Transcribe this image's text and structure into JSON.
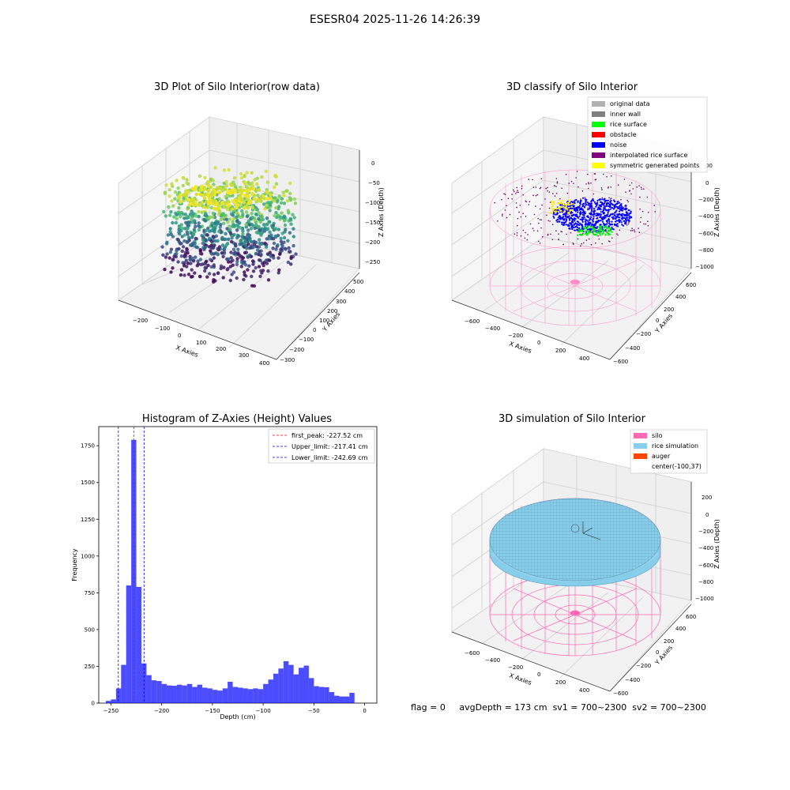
{
  "figure": {
    "suptitle": "ESESR04 2025-11-26 14:26:39",
    "status": {
      "flag": "flag = 0",
      "avg_depth": "avgDepth = 173 cm",
      "sv1": "sv1 = 700~2300",
      "sv2": "sv2 = 700~2300"
    }
  },
  "panels": {
    "raw": {
      "title": "3D Plot of Silo Interior(row data)",
      "xlabel": "X Axies",
      "ylabel": "Y Axies",
      "zlabel": "Z Axies (Depth)",
      "xticks": [
        "−200",
        "−100",
        "0",
        "100",
        "200",
        "300",
        "400"
      ],
      "yticks": [
        "−300",
        "−200",
        "−100",
        "0",
        "100",
        "200",
        "300",
        "400",
        "500"
      ],
      "zticks": [
        "0",
        "−50",
        "−100",
        "−150",
        "−200",
        "−250"
      ]
    },
    "classify": {
      "title": "3D classify of Silo Interior",
      "xlabel": "X Axies",
      "ylabel": "Y Axies",
      "zlabel": "Z Axies (Depth)",
      "xticks": [
        "−600",
        "−400",
        "−200",
        "0",
        "200",
        "400"
      ],
      "yticks": [
        "−600",
        "−400",
        "−200",
        "0",
        "200",
        "400",
        "600"
      ],
      "zticks": [
        "0",
        "−200",
        "−400",
        "−600",
        "−800",
        "−1000"
      ],
      "ztick_partial": "00",
      "legend": [
        {
          "label": "original data",
          "color": "#b0b0b0"
        },
        {
          "label": "inner wall",
          "color": "#808080"
        },
        {
          "label": "rice surface",
          "color": "#00ff00"
        },
        {
          "label": "obstacle",
          "color": "#ff0000"
        },
        {
          "label": "noise",
          "color": "#0000ff"
        },
        {
          "label": "interpolated rice surface",
          "color": "#800080"
        },
        {
          "label": "symmetric generated points",
          "color": "#ffff00"
        }
      ]
    },
    "simulation": {
      "title": "3D simulation of Silo Interior",
      "xlabel": "X Axies",
      "ylabel": "Y Axies",
      "zlabel": "Z Axies (Depth)",
      "xticks": [
        "−600",
        "−400",
        "−200",
        "0",
        "200",
        "400"
      ],
      "yticks": [
        "−600",
        "−400",
        "−200",
        "0",
        "200",
        "400",
        "600"
      ],
      "zticks": [
        "200",
        "0",
        "−200",
        "−400",
        "−600",
        "−800",
        "−1000"
      ],
      "legend": [
        {
          "label": "silo",
          "color": "#ff69b4"
        },
        {
          "label": "rice simulation",
          "color": "#87ceeb"
        },
        {
          "label": "auger",
          "color": "#ff4500"
        },
        {
          "label": "center(-100,37)",
          "color": "none"
        }
      ]
    }
  },
  "chart_data": {
    "type": "bar",
    "title": "Histogram of Z-Axies (Height) Values",
    "xlabel": "Depth (cm)",
    "ylabel": "Frequency",
    "xlim": [
      -262,
      12
    ],
    "ylim": [
      0,
      1880
    ],
    "xticks": [
      -250,
      -200,
      -150,
      -100,
      -50,
      0
    ],
    "xtick_labels": [
      "−250",
      "−200",
      "−150",
      "−100",
      "−50",
      "0"
    ],
    "yticks": [
      0,
      250,
      500,
      750,
      1000,
      1250,
      1500,
      1750
    ],
    "bar_color": "#0000ff",
    "bin_width": 5,
    "bin_starts": [
      -255,
      -250,
      -245,
      -240,
      -235,
      -230,
      -225,
      -220,
      -215,
      -210,
      -205,
      -200,
      -195,
      -190,
      -185,
      -180,
      -175,
      -170,
      -165,
      -160,
      -155,
      -150,
      -145,
      -140,
      -135,
      -130,
      -125,
      -120,
      -115,
      -110,
      -105,
      -100,
      -95,
      -90,
      -85,
      -80,
      -75,
      -70,
      -65,
      -60,
      -55,
      -50,
      -45,
      -40,
      -35,
      -30,
      -25,
      -20,
      -15,
      -10,
      -5,
      0
    ],
    "counts": [
      15,
      25,
      100,
      260,
      800,
      1790,
      790,
      270,
      190,
      155,
      150,
      130,
      120,
      118,
      125,
      120,
      130,
      110,
      125,
      105,
      100,
      90,
      85,
      100,
      145,
      110,
      105,
      100,
      95,
      100,
      95,
      130,
      160,
      200,
      235,
      285,
      260,
      195,
      240,
      255,
      170,
      115,
      110,
      108,
      75,
      50,
      45,
      45,
      70,
      0,
      0,
      0
    ],
    "lines": [
      {
        "label": "first_peak: -227.52 cm",
        "x": -227.52,
        "color": "#ff0000"
      },
      {
        "label": "Upper_limit: -217.41 cm",
        "x": -217.41,
        "color": "#0000ff"
      },
      {
        "label": "Lower_limit: -242.69 cm",
        "x": -242.69,
        "color": "#0000ff"
      }
    ]
  }
}
